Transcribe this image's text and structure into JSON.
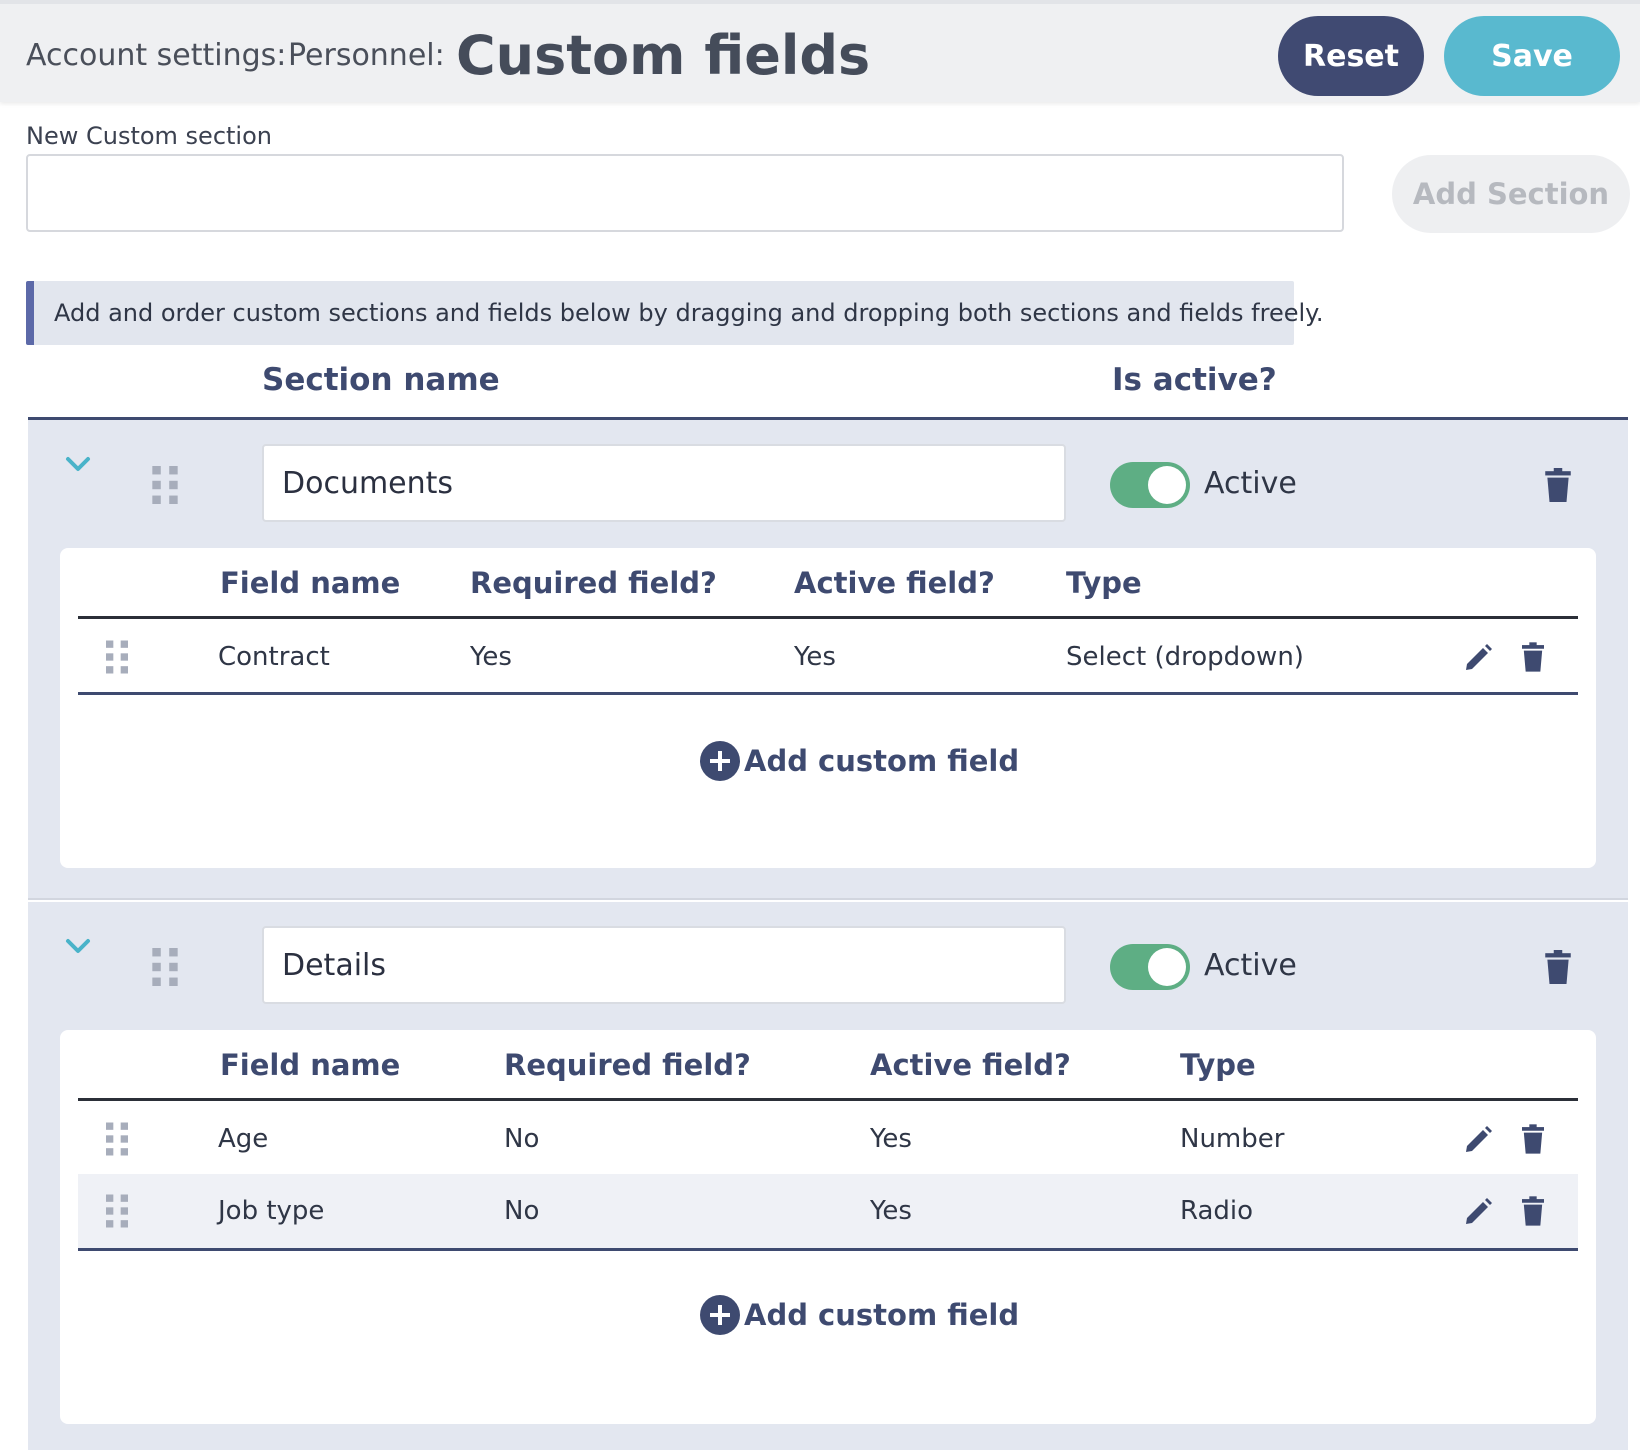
{
  "header": {
    "breadcrumb": [
      "Account settings:",
      "Personnel:"
    ],
    "title": "Custom fields",
    "reset_label": "Reset",
    "save_label": "Save"
  },
  "new_section": {
    "label": "New Custom section",
    "value": "",
    "add_label": "Add Section"
  },
  "info_text": "Add and order custom sections and fields below by dragging and dropping both sections and fields freely.",
  "columns": {
    "section_name": "Section name",
    "is_active": "Is active?"
  },
  "field_columns": {
    "name": "Field name",
    "required": "Required field?",
    "active": "Active field?",
    "type": "Type"
  },
  "sections": [
    {
      "name": "Documents",
      "status": "Active",
      "fields": [
        {
          "name": "Contract",
          "required": "Yes",
          "active": "Yes",
          "type": "Select (dropdown)"
        }
      ],
      "add_field_label": "Add custom field"
    },
    {
      "name": "Details",
      "status": "Active",
      "fields": [
        {
          "name": "Age",
          "required": "No",
          "active": "Yes",
          "type": "Number"
        },
        {
          "name": "Job type",
          "required": "No",
          "active": "Yes",
          "type": "Radio"
        }
      ],
      "add_field_label": "Add custom field"
    }
  ],
  "colors": {
    "primary": "#404a72",
    "save": "#59b9cf",
    "toggle_on": "#5eae84",
    "section_bg": "#e3e7f0",
    "info_accent": "#5c69a8"
  },
  "icons": [
    "chevron-down-icon",
    "drag-handle-icon",
    "trash-icon",
    "pencil-icon",
    "plus-circle-icon"
  ]
}
